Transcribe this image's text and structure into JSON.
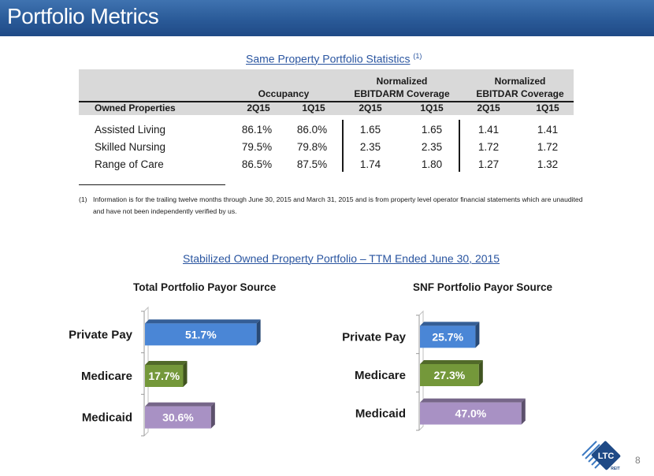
{
  "header": {
    "title": "Portfolio Metrics"
  },
  "stats_section": {
    "title": "Same Property Portfolio Statistics",
    "footnote_marker": "(1)"
  },
  "table": {
    "group_headers": {
      "occupancy": "Occupancy",
      "ebitdarm_line1": "Normalized",
      "ebitdarm_line2": "EBITDARM Coverage",
      "ebitdar_line1": "Normalized",
      "ebitdar_line2": "EBITDAR Coverage"
    },
    "columns": [
      "Owned Properties",
      "2Q15",
      "1Q15",
      "2Q15",
      "1Q15",
      "2Q15",
      "1Q15"
    ],
    "rows": [
      [
        "Assisted Living",
        "86.1%",
        "86.0%",
        "1.65",
        "1.65",
        "1.41",
        "1.41"
      ],
      [
        "Skilled Nursing",
        "79.5%",
        "79.8%",
        "2.35",
        "2.35",
        "1.72",
        "1.72"
      ],
      [
        "Range of Care",
        "86.5%",
        "87.5%",
        "1.74",
        "1.80",
        "1.27",
        "1.32"
      ]
    ]
  },
  "footnote": {
    "number": "(1)",
    "text": "Information is for the trailing twelve months through June 30, 2015 and March 31, 2015 and is from property level operator financial statements which are unaudited and have not been independently verified by us."
  },
  "stabilized_section": {
    "title": "Stabilized Owned Property Portfolio – TTM Ended June 30, 2015"
  },
  "chart_data": [
    {
      "type": "bar",
      "orientation": "horizontal",
      "title": "Total Portfolio Payor Source",
      "categories": [
        "Private Pay",
        "Medicare",
        "Medicaid"
      ],
      "values": [
        51.7,
        17.7,
        30.6
      ],
      "labels": [
        "51.7%",
        "17.7%",
        "30.6%"
      ],
      "colors": [
        "#4a86d6",
        "#74983a",
        "#a891c4"
      ],
      "xlim": [
        0,
        60
      ],
      "grid": false
    },
    {
      "type": "bar",
      "orientation": "horizontal",
      "title": "SNF Portfolio Payor Source",
      "categories": [
        "Private Pay",
        "Medicare",
        "Medicaid"
      ],
      "values": [
        25.7,
        27.3,
        47.0
      ],
      "labels": [
        "25.7%",
        "27.3%",
        "47.0%"
      ],
      "colors": [
        "#4a86d6",
        "#74983a",
        "#a891c4"
      ],
      "xlim": [
        0,
        60
      ],
      "grid": false
    }
  ],
  "logo": {
    "text": "LTC",
    "subtext": "REIT"
  },
  "page": {
    "number": "8"
  }
}
